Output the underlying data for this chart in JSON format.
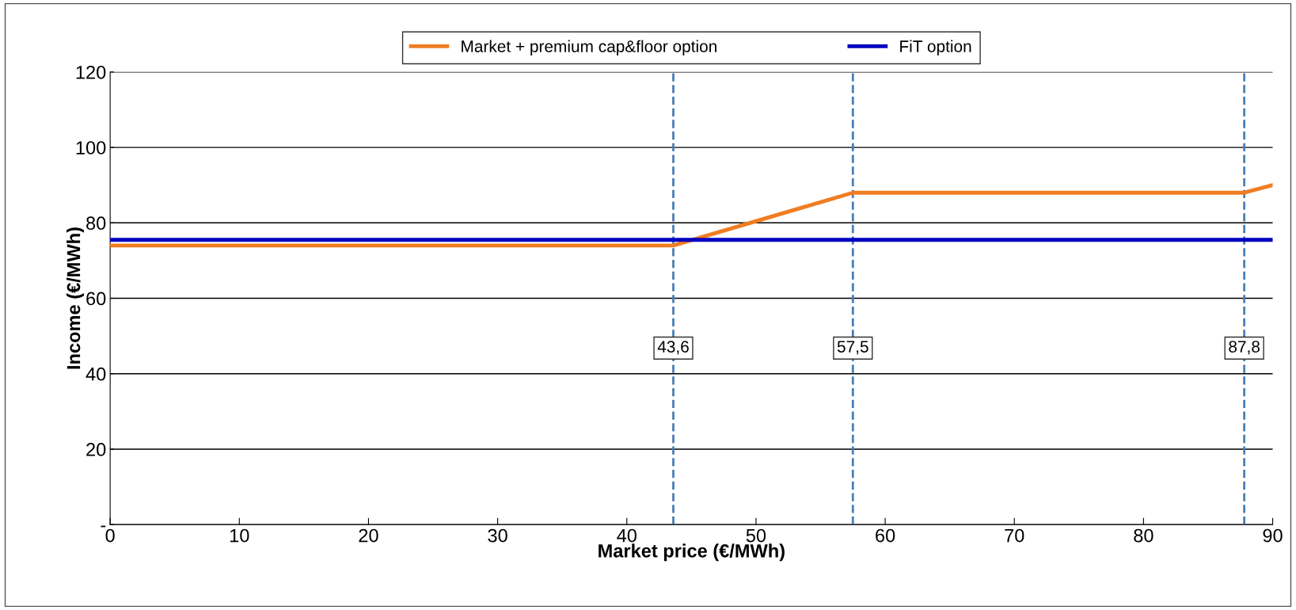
{
  "chart_data": {
    "type": "line",
    "xlabel": "Market price (€/MWh)",
    "ylabel": "Income (€/MWh)",
    "series": [
      {
        "name": "Market + premium cap&floor option",
        "color": "#f07d22",
        "x": [
          0,
          43.6,
          57.5,
          87.8,
          90
        ],
        "values": [
          74,
          74,
          88,
          88,
          90
        ]
      },
      {
        "name": "FiT option",
        "color": "#0000c0",
        "x": [
          0,
          90
        ],
        "values": [
          75.5,
          75.5
        ]
      }
    ],
    "xlim": [
      0,
      90
    ],
    "xticks": [
      0,
      10,
      20,
      30,
      40,
      50,
      60,
      70,
      80,
      90
    ],
    "ylim": [
      0,
      120
    ],
    "yticks": [
      {
        "value": 0,
        "label": "-"
      },
      20,
      40,
      60,
      80,
      100,
      120
    ],
    "ref_lines": [
      {
        "axis": "x",
        "value": 43.6,
        "label": "43,6",
        "color": "#4a7eb5",
        "line_style": "dashed"
      },
      {
        "axis": "x",
        "value": 57.5,
        "label": "57,5",
        "color": "#4a7eb5",
        "line_style": "dashed"
      },
      {
        "axis": "x",
        "value": 87.8,
        "label": "87,8",
        "color": "#4a7eb5",
        "line_style": "dashed"
      }
    ],
    "grid": "y",
    "legend": "top",
    "marker": "none",
    "line_style": "solid"
  }
}
